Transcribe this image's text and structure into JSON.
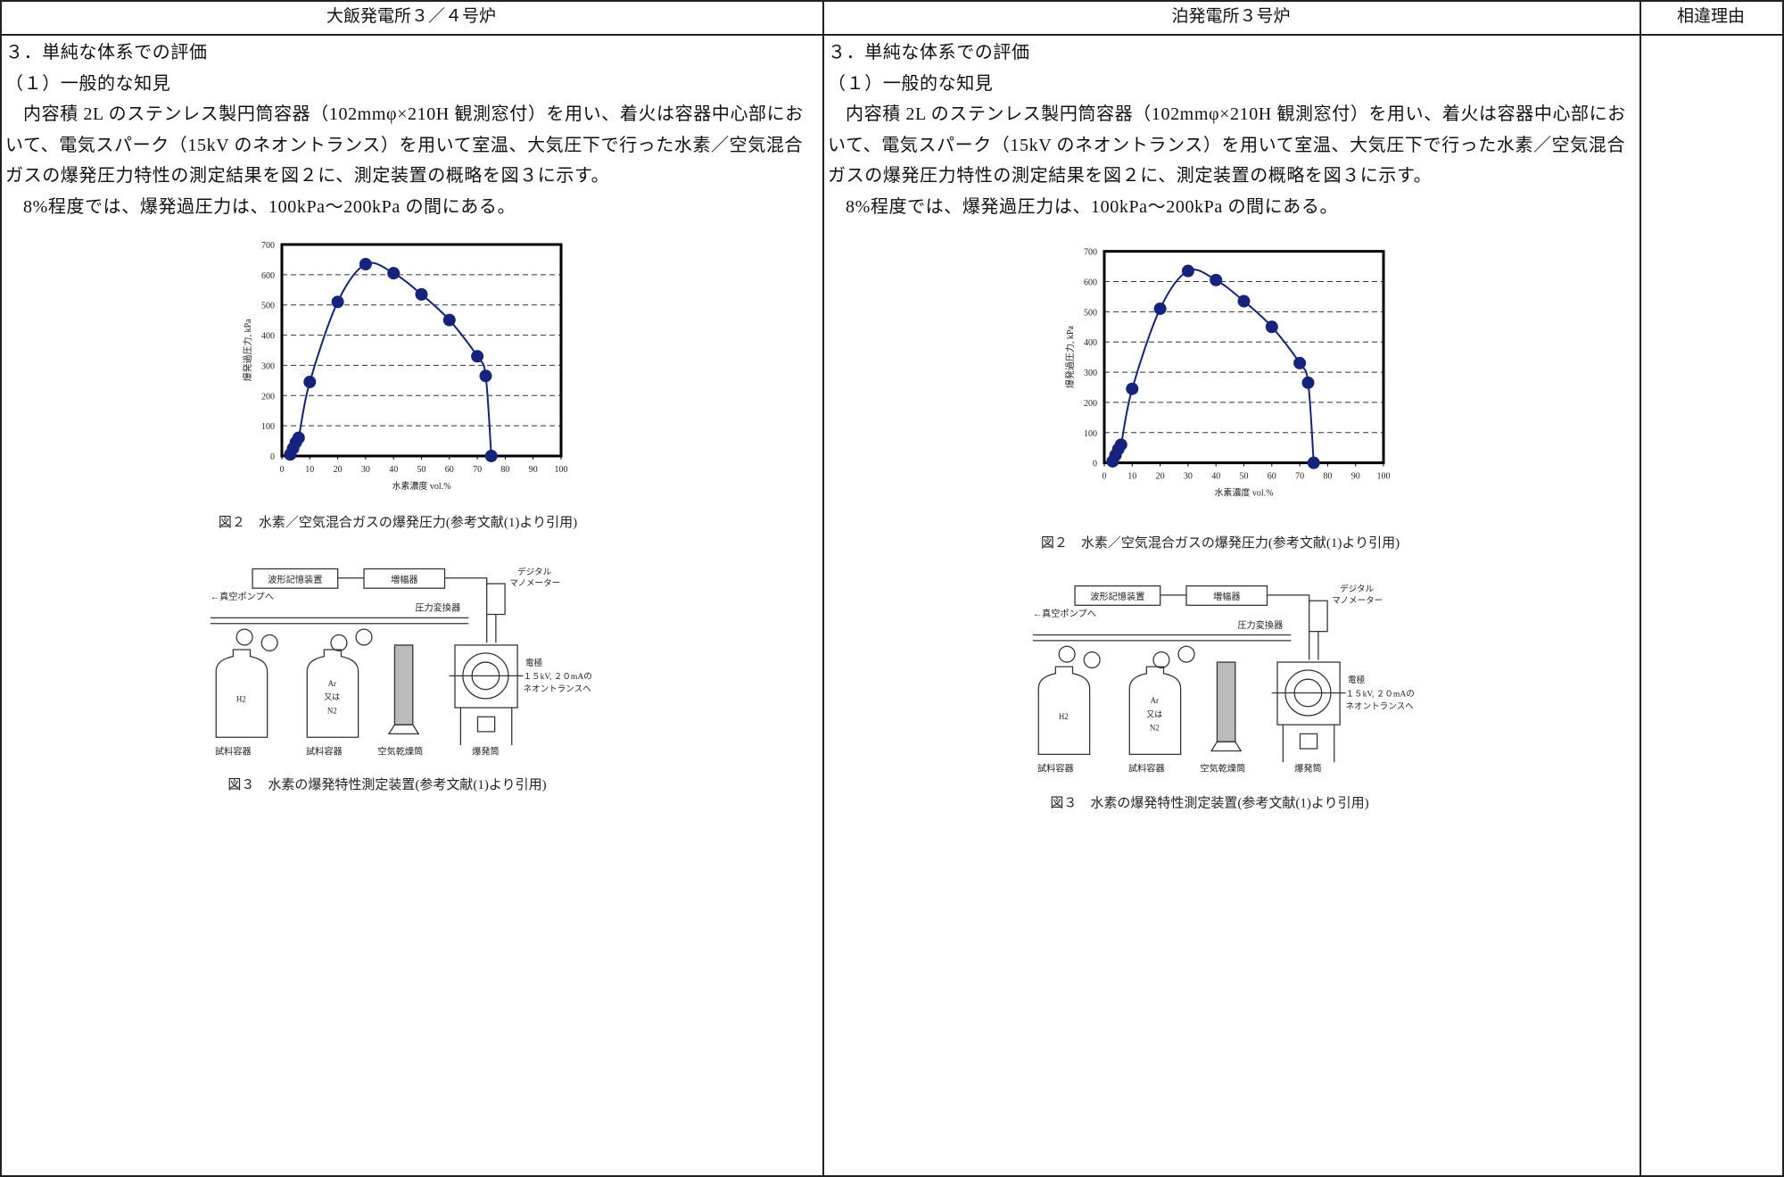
{
  "table": {
    "headers": [
      "大飯発電所３／４号炉",
      "泊発電所３号炉",
      "相違理由"
    ]
  },
  "left": {
    "section": "３．単純な体系での評価",
    "subsection": "（１）一般的な知見",
    "paragraphs": [
      "内容積 2L のステンレス製円筒容器（102mmφ×210H 観測窓付）を用い、着火は容器中心部において、電気スパーク（15kV のネオントランス）を用いて室温、大気圧下で行った水素／空気混合ガスの爆発圧力特性の測定結果を図２に、測定装置の概略を図３に示す。",
      "8%程度では、爆発過圧力は、100kPa～200kPa の間にある。"
    ],
    "figure2": {
      "type": "line",
      "y_label": "爆発過圧力, kPa",
      "x_label": "水素濃度 vol.%",
      "x": [
        3,
        4,
        5,
        6,
        10,
        20,
        30,
        40,
        50,
        60,
        70,
        73,
        75
      ],
      "values": [
        5,
        25,
        45,
        60,
        245,
        510,
        635,
        605,
        535,
        450,
        330,
        265,
        0
      ],
      "color": "#14237e",
      "xlim": [
        0,
        100
      ],
      "xticks": [
        0,
        10,
        20,
        30,
        40,
        50,
        60,
        70,
        80,
        90,
        100
      ],
      "ylim": [
        0,
        700
      ],
      "yticks": [
        0,
        100,
        200,
        300,
        400,
        500,
        600,
        700
      ],
      "grid": true,
      "caption": "図２　水素／空気混合ガスの爆発圧力(参考文献(1)より引用)"
    },
    "figure3": {
      "recorder": "波形記憶装置",
      "amplifier": "増幅器",
      "manometer": [
        "デジタル",
        "マノメーター"
      ],
      "vacuum": "←真空ポンプへ",
      "transducer": "圧力変換器",
      "electrode": "電極",
      "transformer": [
        "１５kV, ２０mAの",
        "ネオントランスへ"
      ],
      "cylinder1": "H2",
      "cylinder2": [
        "Ar",
        "又は",
        "N2"
      ],
      "bottom_labels": [
        "試料容器",
        "試料容器",
        "空気乾燥筒",
        "爆発筒"
      ],
      "caption": "図３　水素の爆発特性測定装置(参考文献(1)より引用)"
    }
  },
  "right": {
    "section": "３．単純な体系での評価",
    "subsection": "（１）一般的な知見",
    "paragraphs": [
      "内容積 2L のステンレス製円筒容器（102mmφ×210H 観測窓付）を用い、着火は容器中心部において、電気スパーク（15kV のネオントランス）を用いて室温、大気圧下で行った水素／空気混合ガスの爆発圧力特性の測定結果を図２に、測定装置の概略を図３に示す。",
      "8%程度では、爆発過圧力は、100kPa～200kPa の間にある。"
    ],
    "figure2": {
      "type": "line",
      "y_label": "爆発過圧力, kPa",
      "x_label": "水素濃度 vol.%",
      "x": [
        3,
        4,
        5,
        6,
        10,
        20,
        30,
        40,
        50,
        60,
        70,
        73,
        75
      ],
      "values": [
        5,
        25,
        45,
        60,
        245,
        510,
        635,
        605,
        535,
        450,
        330,
        265,
        0
      ],
      "color": "#14237e",
      "xlim": [
        0,
        100
      ],
      "xticks": [
        0,
        10,
        20,
        30,
        40,
        50,
        60,
        70,
        80,
        90,
        100
      ],
      "ylim": [
        0,
        700
      ],
      "yticks": [
        0,
        100,
        200,
        300,
        400,
        500,
        600,
        700
      ],
      "grid": true,
      "caption": "図２　水素／空気混合ガスの爆発圧力(参考文献(1)より引用)"
    },
    "figure3": {
      "recorder": "波形記憶装置",
      "amplifier": "増幅器",
      "manometer": [
        "デジタル",
        "マノメーター"
      ],
      "vacuum": "←真空ポンプへ",
      "transducer": "圧力変換器",
      "electrode": "電極",
      "transformer": [
        "１５kV, ２０mAの",
        "ネオントランスへ"
      ],
      "cylinder1": "H2",
      "cylinder2": [
        "Ar",
        "又は",
        "N2"
      ],
      "bottom_labels": [
        "試料容器",
        "試料容器",
        "空気乾燥筒",
        "爆発筒"
      ],
      "caption": "図３　水素の爆発特性測定装置(参考文献(1)より引用)"
    }
  }
}
